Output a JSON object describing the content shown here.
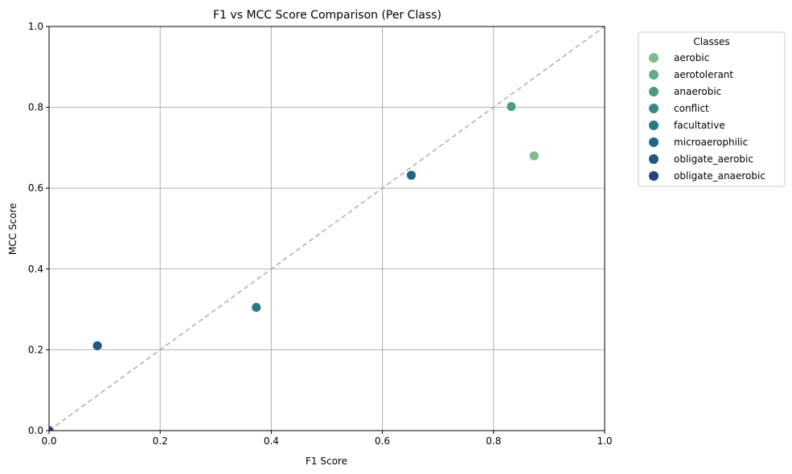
{
  "chart_data": {
    "type": "scatter",
    "title": "F1 vs MCC Score Comparison (Per Class)",
    "xlabel": "F1 Score",
    "ylabel": "MCC Score",
    "xlim": [
      0,
      1
    ],
    "ylim": [
      0,
      1
    ],
    "xticks": [
      "0.0",
      "0.2",
      "0.4",
      "0.6",
      "0.8",
      "1.0"
    ],
    "yticks": [
      "0.0",
      "0.2",
      "0.4",
      "0.6",
      "0.8",
      "1.0"
    ],
    "grid": true,
    "reference_line": {
      "style": "dashed",
      "color": "#b0b0b0",
      "from": [
        0,
        0
      ],
      "to": [
        1,
        1
      ]
    },
    "legend": {
      "title": "Classes",
      "placement": "outside-top-right"
    },
    "series": [
      {
        "name": "aerobic",
        "color": "#7fbc8c",
        "points": [
          {
            "x": 0.873,
            "y": 0.68
          }
        ]
      },
      {
        "name": "aerotolerant",
        "color": "#65ab85",
        "points": []
      },
      {
        "name": "anaerobic",
        "color": "#4c9a83",
        "points": [
          {
            "x": 0.832,
            "y": 0.802
          }
        ]
      },
      {
        "name": "conflict",
        "color": "#378a84",
        "points": []
      },
      {
        "name": "facultative",
        "color": "#277985",
        "points": [
          {
            "x": 0.373,
            "y": 0.305
          }
        ]
      },
      {
        "name": "microaerophilic",
        "color": "#1f6885",
        "points": [
          {
            "x": 0.652,
            "y": 0.632
          }
        ]
      },
      {
        "name": "obligate_aerobic",
        "color": "#205683",
        "points": [
          {
            "x": 0.087,
            "y": 0.21
          }
        ]
      },
      {
        "name": "obligate_anaerobic",
        "color": "#27437e",
        "points": [
          {
            "x": 0.0,
            "y": 0.0
          }
        ]
      }
    ]
  }
}
